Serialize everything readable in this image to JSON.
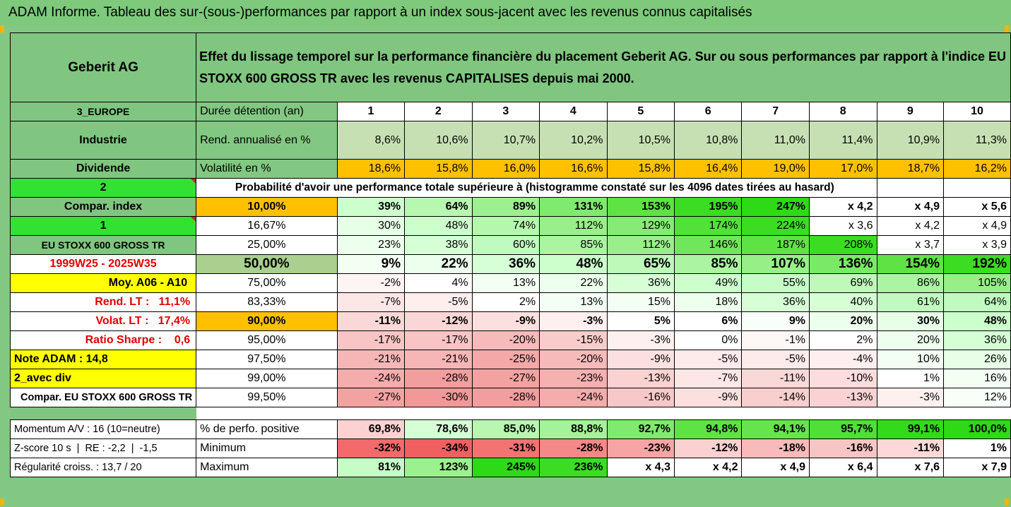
{
  "title": "ADAM Informe. Tableau des sur-(sous-)performances par rapport à un index sous-jacent avec les revenus connus capitalisés",
  "left_panel": {
    "asset": "Geberit AG",
    "region": "3_EUROPE",
    "sector": "Industrie",
    "dividend_label": "Dividende",
    "dividend_value": "2",
    "compar_index": "Compar. index",
    "compar_value": "1",
    "index_name": "EU STOXX 600 GROSS TR",
    "period": "1999W25 - 2025W35",
    "moy": "Moy. A06 - A10",
    "rend_lt": "Rend. LT :   11,1%",
    "volat_lt": "Volat. LT :   17,4%",
    "sharpe": "Ratio Sharpe :    0,6",
    "note": "Note ADAM : 14,8",
    "avec_div": "2_avec div",
    "compar_full": "Compar. EU STOXX 600 GROSS TR"
  },
  "description": "Effet du lissage temporel sur la performance financière du placement Geberit AG. Sur ou sous performances par rapport à l'indice EU STOXX 600 GROSS TR avec les revenus CAPITALISES depuis mai 2000.",
  "duration_label": "Durée détention (an)",
  "years": [
    "1",
    "2",
    "3",
    "4",
    "5",
    "6",
    "7",
    "8",
    "9",
    "10"
  ],
  "rend": {
    "label": "Rend. annualisé en %",
    "values": [
      "8,6%",
      "10,6%",
      "10,7%",
      "10,2%",
      "10,5%",
      "10,8%",
      "11,0%",
      "11,4%",
      "10,9%",
      "11,3%"
    ],
    "color": "#c6e0b4"
  },
  "vol": {
    "label": "Volatilité en %",
    "values": [
      "18,6%",
      "15,8%",
      "16,0%",
      "16,6%",
      "15,8%",
      "16,4%",
      "19,0%",
      "17,0%",
      "18,7%",
      "16,2%"
    ],
    "color": "#ffc000"
  },
  "proba_text": "Probabilité d'avoir une performance totale supérieure à (histogramme constaté sur les 4096 dates tirées au hasard)",
  "prob_rows": [
    {
      "p": "10,00%",
      "v": [
        "39%",
        "64%",
        "89%",
        "131%",
        "153%",
        "195%",
        "247%",
        "x 4,2",
        "x 4,9",
        "x 5,6"
      ],
      "c": [
        "#ccffcc",
        "#b7f7b0",
        "#9cf08f",
        "#80ea6f",
        "#5ee244",
        "#3bdc22",
        "#2ed915",
        "#ffffff",
        "#ffffff",
        "#ffffff"
      ]
    },
    {
      "p": "16,67%",
      "v": [
        "30%",
        "48%",
        "74%",
        "112%",
        "129%",
        "174%",
        "224%",
        "x 3,6",
        "x 4,2",
        "x 4,9"
      ],
      "c": [
        "#e6ffe6",
        "#ccffcc",
        "#b5f7ad",
        "#99ef8a",
        "#85eb75",
        "#52e03a",
        "#3bdc22",
        "#ffffff",
        "#ffffff",
        "#ffffff"
      ]
    },
    {
      "p": "25,00%",
      "v": [
        "23%",
        "38%",
        "60%",
        "85%",
        "112%",
        "146%",
        "187%",
        "208%",
        "x 3,7",
        "x 3,9"
      ],
      "c": [
        "#edffed",
        "#d6ffd6",
        "#c0fac0",
        "#aaf4a2",
        "#99ef8a",
        "#70e75a",
        "#5ee244",
        "#3bdc22",
        "#ffffff",
        "#ffffff"
      ]
    },
    {
      "p": "50,00%",
      "v": [
        "9%",
        "22%",
        "36%",
        "48%",
        "65%",
        "85%",
        "107%",
        "136%",
        "154%",
        "192%"
      ],
      "c": [
        "#f4fff4",
        "#edffed",
        "#d6ffd6",
        "#ccffcc",
        "#bef9b9",
        "#aaf4a2",
        "#96ef87",
        "#7ae967",
        "#5ee244",
        "#3bdc22"
      ]
    },
    {
      "p": "75,00%",
      "v": [
        "-2%",
        "4%",
        "13%",
        "22%",
        "36%",
        "49%",
        "55%",
        "69%",
        "86%",
        "105%"
      ],
      "c": [
        "#fff4f4",
        "#ffffff",
        "#f4fff4",
        "#edffed",
        "#d6ffd6",
        "#ccffcc",
        "#c6fcc6",
        "#bef9b9",
        "#aaf4a2",
        "#96ef87"
      ]
    },
    {
      "p": "83,33%",
      "v": [
        "-7%",
        "-5%",
        "2%",
        "13%",
        "15%",
        "18%",
        "36%",
        "40%",
        "61%",
        "64%"
      ],
      "c": [
        "#fde6e6",
        "#feeeee",
        "#ffffff",
        "#f4fff4",
        "#f4fff4",
        "#edffed",
        "#d6ffd6",
        "#d6ffd6",
        "#c0fac0",
        "#c0fac0"
      ]
    },
    {
      "p": "90,00%",
      "v": [
        "-11%",
        "-12%",
        "-9%",
        "-3%",
        "5%",
        "6%",
        "9%",
        "20%",
        "30%",
        "48%"
      ],
      "c": [
        "#fbd8d8",
        "#fbd6d6",
        "#fce0e0",
        "#fff0f0",
        "#ffffff",
        "#ffffff",
        "#f8fff8",
        "#edffed",
        "#e6ffe6",
        "#ccffcc"
      ]
    },
    {
      "p": "95,00%",
      "v": [
        "-17%",
        "-17%",
        "-20%",
        "-15%",
        "-3%",
        "0%",
        "-1%",
        "2%",
        "20%",
        "36%"
      ],
      "c": [
        "#f8c4c4",
        "#f8c4c4",
        "#f6baba",
        "#f9cccc",
        "#fff0f0",
        "#ffffff",
        "#fff6f6",
        "#ffffff",
        "#edffed",
        "#d6ffd6"
      ]
    },
    {
      "p": "97,50%",
      "v": [
        "-21%",
        "-21%",
        "-25%",
        "-20%",
        "-9%",
        "-5%",
        "-5%",
        "-4%",
        "10%",
        "26%"
      ],
      "c": [
        "#f6b6b6",
        "#f6b6b6",
        "#f4a8a8",
        "#f6baba",
        "#fce0e0",
        "#feeaea",
        "#feeaea",
        "#ffeeee",
        "#f4fff4",
        "#e6ffe6"
      ]
    },
    {
      "p": "99,00%",
      "v": [
        "-24%",
        "-28%",
        "-27%",
        "-23%",
        "-13%",
        "-7%",
        "-11%",
        "-10%",
        "1%",
        "16%"
      ],
      "c": [
        "#f4acac",
        "#f29e9e",
        "#f3a2a2",
        "#f5b0b0",
        "#fad2d2",
        "#fde6e6",
        "#fbd8d8",
        "#fcdcdc",
        "#ffffff",
        "#f4fff4"
      ]
    },
    {
      "p": "99,50%",
      "v": [
        "-27%",
        "-30%",
        "-28%",
        "-24%",
        "-16%",
        "-9%",
        "-14%",
        "-13%",
        "-3%",
        "12%"
      ],
      "c": [
        "#f3a2a2",
        "#f19898",
        "#f29e9e",
        "#f4acac",
        "#f8c8c8",
        "#fce0e0",
        "#f9cece",
        "#fad2d2",
        "#fff0f0",
        "#f8fff8"
      ]
    }
  ],
  "momentum_label": "Momentum A/V : 16 (10=neutre)",
  "zscore_label": "Z-score 10 s  |  RE : -2,2  |  -1,5",
  "regul_label": "Régularité croiss. : 13,7 / 20",
  "pos": {
    "label": "% de perfo. positive",
    "values": [
      "69,8%",
      "78,6%",
      "85,0%",
      "88,8%",
      "92,7%",
      "94,8%",
      "94,1%",
      "95,7%",
      "99,1%",
      "100,0%"
    ],
    "colors": [
      "#fbd2d2",
      "#d6ffd6",
      "#b7f7b0",
      "#a4f299",
      "#80ea6f",
      "#5ee244",
      "#66e44c",
      "#4fdf36",
      "#33da1a",
      "#2ed915"
    ]
  },
  "min": {
    "label": "Minimum",
    "values": [
      "-32%",
      "-34%",
      "-31%",
      "-28%",
      "-23%",
      "-12%",
      "-18%",
      "-16%",
      "-11%",
      "1%"
    ],
    "colors": [
      "#f26a6a",
      "#f06060",
      "#f37272",
      "#f58888",
      "#f7a4a4",
      "#fbd0d0",
      "#f8baba",
      "#f9c4c4",
      "#fcd8d8",
      "#ffffff"
    ]
  },
  "max": {
    "label": "Maximum",
    "values": [
      "81%",
      "123%",
      "245%",
      "236%",
      "x 4,3",
      "x 4,2",
      "x 4,9",
      "x 6,4",
      "x 7,6",
      "x 7,9"
    ],
    "colors": [
      "#c6fcc6",
      "#9cf08f",
      "#2ed915",
      "#3bdc22",
      "#ffffff",
      "#ffffff",
      "#ffffff",
      "#ffffff",
      "#ffffff",
      "#ffffff"
    ]
  },
  "colors": {
    "header_green": "#80c680",
    "title_green": "#7ec97c",
    "bright_green": "#33e133",
    "yellow": "#ffff00",
    "orange": "#ffc000",
    "red_text": "#e00000"
  }
}
